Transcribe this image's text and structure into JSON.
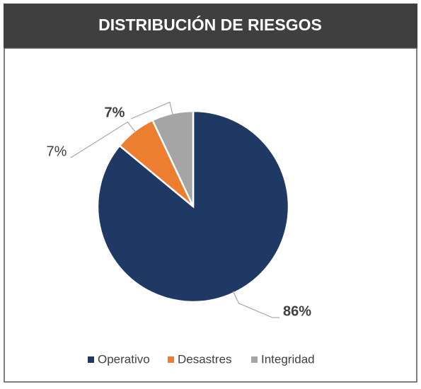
{
  "chart_data": {
    "type": "pie",
    "title": "DISTRIBUCIÓN DE RIESGOS",
    "categories": [
      "Operativo",
      "Desastres",
      "Integridad"
    ],
    "values": [
      86,
      7,
      7
    ],
    "value_labels": [
      "86%",
      "7%",
      "7%"
    ],
    "colors": [
      "#203864",
      "#ed7d31",
      "#a5a5a5"
    ],
    "legend": "bottom"
  }
}
